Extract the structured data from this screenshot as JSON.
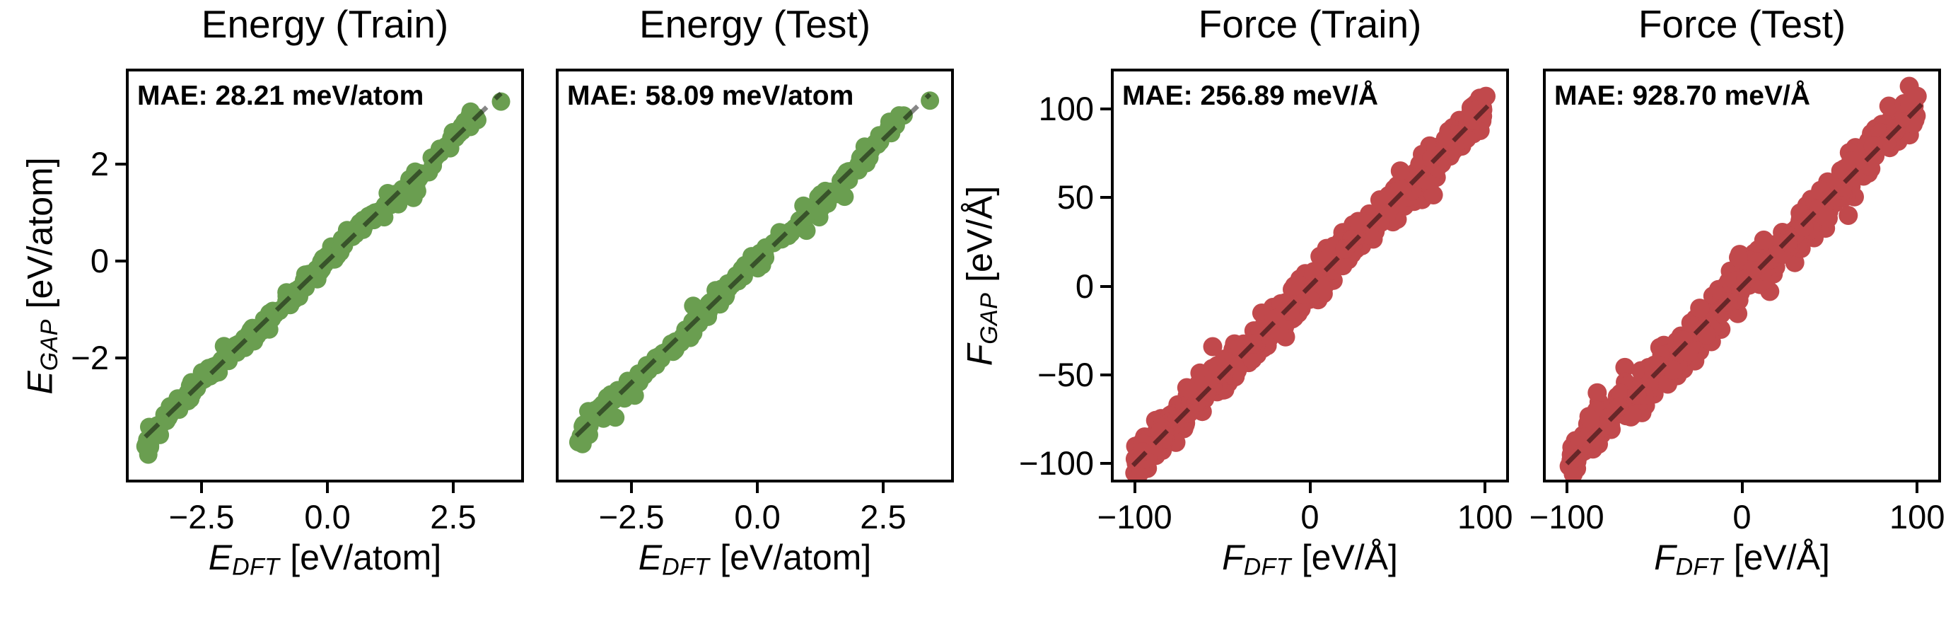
{
  "colors": {
    "background": "#ffffff",
    "axis": "#000000",
    "energy_marker": "#6a9e50",
    "force_marker": "#c1494c",
    "identity_line": "rgba(0,0,0,0.47)"
  },
  "chart_data": [
    {
      "type": "scatter",
      "id": "energy-train",
      "title": "Energy (Train)",
      "annotation": "MAE: 28.21 meV/atom",
      "mae": {
        "value": 28.21,
        "units": "meV/atom"
      },
      "xlabel": {
        "sym": "E",
        "sub": "DFT",
        "unit": "[eV/atom]",
        "text": "E_DFT [eV/atom]"
      },
      "ylabel": {
        "sym": "E",
        "sub": "GAP",
        "unit": "[eV/atom]",
        "text": "E_GAP [eV/atom]"
      },
      "xlim": [
        -3.95,
        3.85
      ],
      "ylim": [
        -4.5,
        3.9
      ],
      "xtick_values": [
        -2.5,
        0,
        2.5
      ],
      "xtick_labels": [
        "−2.5",
        "0.0",
        "2.5"
      ],
      "ytick_values": [
        2,
        0,
        -2
      ],
      "ytick_labels": [
        "2",
        "0",
        "−2"
      ],
      "show_ytick_labels": true,
      "show_ylabel": true,
      "marker_color": "#6a9e50",
      "relation": "parity plot, points follow y = x",
      "identity_line": {
        "range": [
          -3.62,
          3.45
        ],
        "dashed": true,
        "color": "rgba(0,0,0,0.47)"
      },
      "scatter": {
        "n": 300,
        "seed": 7,
        "x_min": -3.62,
        "x_max": 2.98,
        "noise_sd": 0.09,
        "wiggle": {
          "amp": 0.06,
          "freq": 2.3,
          "phase": 1.0
        },
        "bumps": {
          "every": 61,
          "mag": 0.35
        },
        "dip": {
          "below": -3.25,
          "factor": 0.6
        },
        "outliers": [
          [
            3.45,
            3.28
          ]
        ],
        "marker_radius": 13
      }
    },
    {
      "type": "scatter",
      "id": "energy-test",
      "title": "Energy (Test)",
      "annotation": "MAE: 58.09 meV/atom",
      "mae": {
        "value": 58.09,
        "units": "meV/atom"
      },
      "xlabel": {
        "sym": "E",
        "sub": "DFT",
        "unit": "[eV/atom]",
        "text": "E_DFT [eV/atom]"
      },
      "ylabel": {
        "sym": "E",
        "sub": "GAP",
        "unit": "[eV/atom]",
        "text": "E_GAP [eV/atom]"
      },
      "xlim": [
        -3.95,
        3.85
      ],
      "ylim": [
        -4.5,
        3.9
      ],
      "xtick_values": [
        -2.5,
        0,
        2.5
      ],
      "xtick_labels": [
        "−2.5",
        "0.0",
        "2.5"
      ],
      "ytick_values": [
        2,
        0,
        -2
      ],
      "ytick_labels": [
        "2",
        "0",
        "−2"
      ],
      "show_ytick_labels": false,
      "show_ylabel": false,
      "marker_color": "#6a9e50",
      "relation": "parity plot, points follow y = x",
      "identity_line": {
        "range": [
          -3.6,
          3.43
        ],
        "dashed": true,
        "color": "rgba(0,0,0,0.47)"
      },
      "scatter": {
        "n": 220,
        "seed": 13,
        "x_min": -3.6,
        "x_max": 2.92,
        "noise_sd": 0.105,
        "wiggle": {
          "amp": 0.07,
          "freq": 2.1,
          "phase": 2.2
        },
        "bumps": {
          "every": 47,
          "mag": 0.4
        },
        "dip": {
          "below": -3.2,
          "factor": 0.5
        },
        "outliers": [
          [
            3.43,
            3.3
          ]
        ],
        "marker_radius": 13
      }
    },
    {
      "type": "scatter",
      "id": "force-train",
      "title": "Force (Train)",
      "annotation": "MAE: 256.89 meV/Å",
      "mae": {
        "value": 256.89,
        "units": "meV/Å"
      },
      "xlabel": {
        "sym": "F",
        "sub": "DFT",
        "unit": "[eV/Å]",
        "text": "F_DFT [eV/Å]"
      },
      "ylabel": {
        "sym": "F",
        "sub": "GAP",
        "unit": "[eV/Å]",
        "text": "F_GAP [eV/Å]"
      },
      "xlim": [
        -112,
        112
      ],
      "ylim": [
        -109,
        121
      ],
      "xtick_values": [
        -100,
        0,
        100
      ],
      "xtick_labels": [
        "−100",
        "0",
        "100"
      ],
      "ytick_values": [
        100,
        50,
        0,
        -50,
        -100
      ],
      "ytick_labels": [
        "100",
        "50",
        "0",
        "−50",
        "−100"
      ],
      "show_ytick_labels": true,
      "show_ylabel": true,
      "marker_color": "#c1494c",
      "relation": "parity plot, points follow y = x",
      "identity_line": {
        "range": [
          -101,
          105
        ],
        "dashed": true,
        "color": "rgba(0,0,0,0.47)"
      },
      "scatter": {
        "n": 620,
        "seed": 21,
        "x_min": -100,
        "x_max": 100,
        "noise_sd": 5.0,
        "wiggle": {
          "amp": 2.5,
          "freq": 0.07,
          "phase": 0.5
        },
        "bumps": {
          "every": 41,
          "mag": 16
        },
        "dip": null,
        "outliers": [
          [
            100.5,
            107
          ]
        ],
        "marker_radius": 13.5
      }
    },
    {
      "type": "scatter",
      "id": "force-test",
      "title": "Force (Test)",
      "annotation": "MAE: 928.70 meV/Å",
      "mae": {
        "value": 928.7,
        "units": "meV/Å"
      },
      "xlabel": {
        "sym": "F",
        "sub": "DFT",
        "unit": "[eV/Å]",
        "text": "F_DFT [eV/Å]"
      },
      "ylabel": {
        "sym": "F",
        "sub": "GAP",
        "unit": "[eV/Å]",
        "text": "F_GAP [eV/Å]"
      },
      "xlim": [
        -112,
        112
      ],
      "ylim": [
        -109,
        121
      ],
      "xtick_values": [
        -100,
        0,
        100
      ],
      "xtick_labels": [
        "−100",
        "0",
        "100"
      ],
      "ytick_values": [
        100,
        50,
        0,
        -50,
        -100
      ],
      "ytick_labels": [
        "100",
        "50",
        "0",
        "−50",
        "−100"
      ],
      "show_ytick_labels": false,
      "show_ylabel": false,
      "marker_color": "#c1494c",
      "relation": "parity plot, points follow y = x",
      "identity_line": {
        "range": [
          -100,
          105
        ],
        "dashed": true,
        "color": "rgba(0,0,0,0.47)"
      },
      "scatter": {
        "n": 500,
        "seed": 29,
        "x_min": -99,
        "x_max": 100,
        "noise_sd": 5.8,
        "wiggle": {
          "amp": 3.0,
          "freq": 0.08,
          "phase": 1.7
        },
        "bumps": {
          "every": 37,
          "mag": 18
        },
        "dip": null,
        "outliers": [
          [
            100,
            107
          ]
        ],
        "marker_radius": 13.5
      }
    }
  ]
}
